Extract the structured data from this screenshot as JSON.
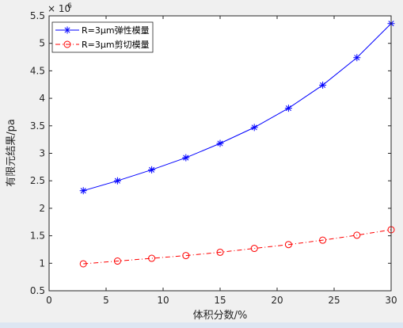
{
  "chart_data": {
    "type": "line",
    "xlabel": "体积分数/%",
    "ylabel": "有限元结果/pa",
    "y_exponent_base": "× 10",
    "y_exponent_power": "6",
    "xlim": [
      0,
      30
    ],
    "ylim": [
      0.5,
      5.5
    ],
    "x_ticks": [
      0,
      5,
      10,
      15,
      20,
      25,
      30
    ],
    "x_tick_labels": [
      "0",
      "5",
      "10",
      "15",
      "20",
      "25",
      "30"
    ],
    "y_ticks": [
      0.5,
      1,
      1.5,
      2,
      2.5,
      3,
      3.5,
      4,
      4.5,
      5,
      5.5
    ],
    "y_tick_labels": [
      "0.5",
      "1",
      "1.5",
      "2",
      "2.5",
      "3",
      "3.5",
      "4",
      "4.5",
      "5",
      "5.5"
    ],
    "grid": false,
    "legend_position": "top-left",
    "x": [
      3,
      6,
      9,
      12,
      15,
      18,
      21,
      24,
      27,
      30
    ],
    "series": [
      {
        "name": "R=3μm弹性模量",
        "color": "#0000ff",
        "marker": "asterisk",
        "line_style": "solid",
        "values": [
          2.32,
          2.5,
          2.7,
          2.92,
          3.18,
          3.47,
          3.82,
          4.24,
          4.74,
          5.36
        ]
      },
      {
        "name": "R=3μm剪切模量",
        "color": "#ff0000",
        "marker": "circle",
        "line_style": "dash-dot",
        "values": [
          0.99,
          1.04,
          1.09,
          1.14,
          1.2,
          1.27,
          1.34,
          1.42,
          1.51,
          1.61
        ]
      }
    ]
  }
}
